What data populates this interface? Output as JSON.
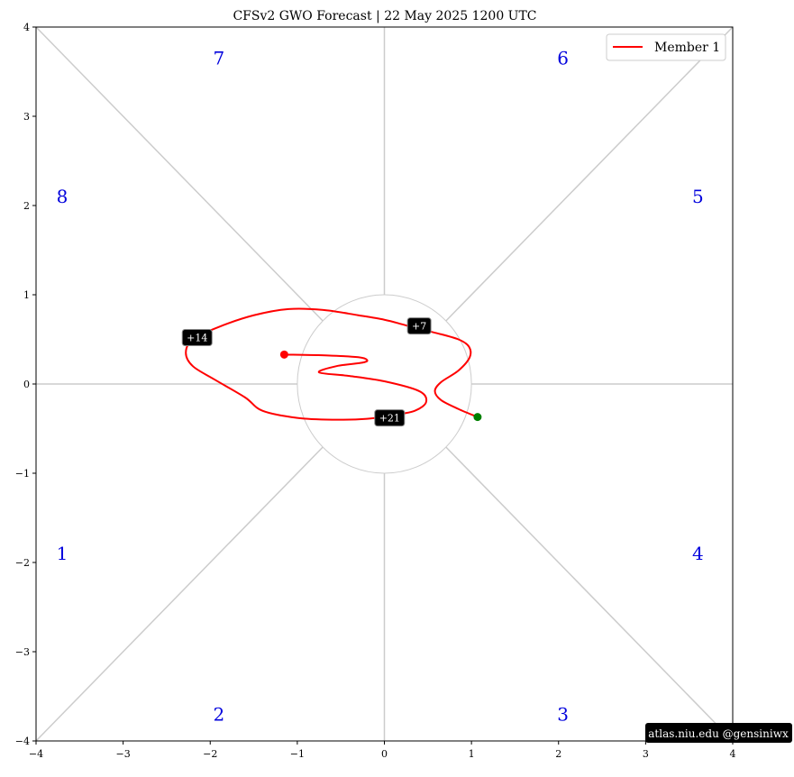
{
  "chart_data": {
    "type": "line",
    "title": "CFSv2 GWO Forecast   |   22  May  2025 1200 UTC",
    "xlabel": "",
    "ylabel": "",
    "xlim": [
      -4,
      4
    ],
    "ylim": [
      -4,
      4
    ],
    "xticks": [
      -4,
      -3,
      -2,
      -1,
      0,
      1,
      2,
      3,
      4
    ],
    "yticks": [
      -4,
      -3,
      -2,
      -1,
      0,
      1,
      2,
      3,
      4
    ],
    "xtick_labels": [
      "−4",
      "−3",
      "−2",
      "−1",
      "0",
      "1",
      "2",
      "3",
      "4"
    ],
    "ytick_labels": [
      "−4",
      "−3",
      "−2",
      "−1",
      "0",
      "1",
      "2",
      "3",
      "4"
    ],
    "grid": false,
    "reference_circle_radius": 1,
    "reference_lines": "horizontal, vertical and both diagonals through origin",
    "phase_labels": [
      {
        "text": "1",
        "x": -3.7,
        "y": -1.9
      },
      {
        "text": "2",
        "x": -1.9,
        "y": -3.7
      },
      {
        "text": "3",
        "x": 2.05,
        "y": -3.7
      },
      {
        "text": "4",
        "x": 3.6,
        "y": -1.9
      },
      {
        "text": "5",
        "x": 3.6,
        "y": 2.1
      },
      {
        "text": "6",
        "x": 2.05,
        "y": 3.65
      },
      {
        "text": "7",
        "x": -1.9,
        "y": 3.65
      },
      {
        "text": "8",
        "x": -3.7,
        "y": 2.1
      }
    ],
    "series": [
      {
        "name": "Member 1",
        "color": "#ff0000",
        "x": [
          1.07,
          0.85,
          0.65,
          0.58,
          0.65,
          0.85,
          0.98,
          0.97,
          0.85,
          0.6,
          0.38,
          0.2,
          0.0,
          -0.3,
          -0.7,
          -1.1,
          -1.5,
          -1.9,
          -2.2,
          -2.28,
          -2.2,
          -1.95,
          -1.6,
          -1.4,
          -1.0,
          -0.6,
          -0.2,
          0.1,
          0.35,
          0.48,
          0.4,
          0.0,
          -0.4,
          -0.75,
          -0.55,
          -0.25,
          -0.2,
          -0.3,
          -0.65,
          -1.15
        ],
        "y": [
          -0.37,
          -0.28,
          -0.18,
          -0.08,
          0.02,
          0.15,
          0.3,
          0.42,
          0.5,
          0.57,
          0.62,
          0.67,
          0.72,
          0.77,
          0.83,
          0.84,
          0.77,
          0.64,
          0.5,
          0.35,
          0.2,
          0.05,
          -0.15,
          -0.3,
          -0.38,
          -0.4,
          -0.39,
          -0.35,
          -0.3,
          -0.2,
          -0.08,
          0.03,
          0.09,
          0.13,
          0.2,
          0.24,
          0.27,
          0.3,
          0.32,
          0.33
        ],
        "start_marker_color": "#008000",
        "end_marker_color": "#ff0000"
      }
    ],
    "day_annotations": [
      {
        "text": "+7",
        "x": 0.4,
        "y": 0.65
      },
      {
        "text": "+14",
        "x": -2.15,
        "y": 0.52
      },
      {
        "text": "+21",
        "x": 0.06,
        "y": -0.38
      }
    ],
    "legend": {
      "position": "top-right",
      "entries": [
        "Member 1"
      ]
    }
  },
  "watermark": "atlas.niu.edu  @gensiniwx"
}
